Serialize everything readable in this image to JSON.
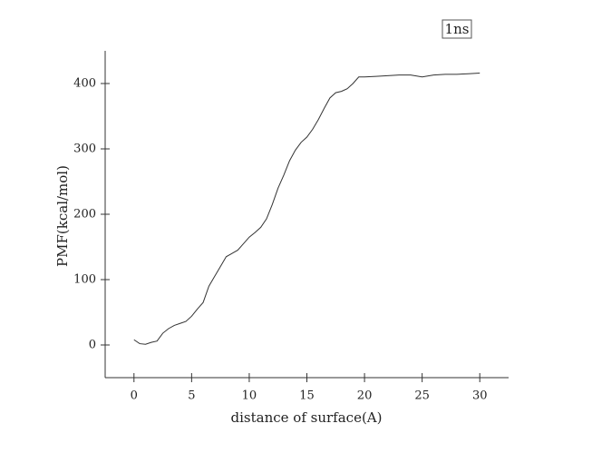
{
  "chart_data": {
    "type": "line",
    "x_label": "distance of surface(A)",
    "y_label": "PMF(kcal/mol)",
    "x": [
      0,
      0.5,
      1,
      1.5,
      2,
      2.5,
      3,
      3.5,
      4,
      4.5,
      5,
      5.5,
      6,
      6.5,
      7,
      7.5,
      8,
      8.5,
      9,
      9.5,
      10,
      10.5,
      11,
      11.5,
      12,
      12.5,
      13,
      13.5,
      14,
      14.5,
      15,
      15.5,
      16,
      16.5,
      17,
      17.5,
      18,
      18.5,
      19,
      19.5,
      20,
      21,
      22,
      23,
      24,
      25,
      26,
      27,
      28,
      29,
      30
    ],
    "series": [
      {
        "name": "1ns",
        "color": "#333333",
        "values": [
          8,
          2,
          1,
          4,
          6,
          18,
          25,
          30,
          33,
          36,
          44,
          55,
          65,
          90,
          105,
          120,
          135,
          140,
          145,
          155,
          165,
          172,
          180,
          193,
          215,
          240,
          260,
          282,
          298,
          310,
          318,
          330,
          345,
          362,
          378,
          386,
          388,
          392,
          400,
          410,
          410,
          411,
          412,
          413,
          413,
          410,
          413,
          414,
          414,
          415,
          416
        ]
      }
    ],
    "xlim": [
      -2.5,
      32.5
    ],
    "xticks": [
      0,
      5,
      10,
      15,
      20,
      25,
      30
    ],
    "ylim": [
      -50,
      450
    ],
    "yticks": [
      0,
      100,
      200,
      300,
      400
    ],
    "grid": false,
    "legend": "top-right"
  }
}
